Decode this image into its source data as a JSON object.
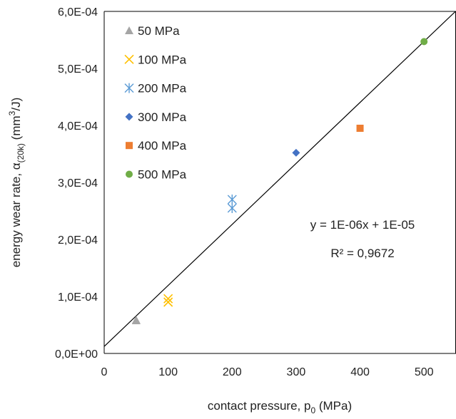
{
  "chart_data": {
    "type": "scatter",
    "title": "",
    "xlabel": "contact pressure,  p",
    "xlabel_sub": "0",
    "xlabel_unit": " (MPa)",
    "ylabel": "energy wear rate, α",
    "ylabel_sub": "(20k)",
    "ylabel_unit": " (mm",
    "ylabel_sup": "3",
    "ylabel_end": "/J)",
    "xlim": [
      0,
      550
    ],
    "ylim": [
      0,
      0.0006
    ],
    "xticks": [
      0,
      100,
      200,
      300,
      400,
      500
    ],
    "xtick_labels": [
      "0",
      "100",
      "200",
      "300",
      "400",
      "500"
    ],
    "yticks": [
      0,
      0.0001,
      0.0002,
      0.0003,
      0.0004,
      0.0005,
      0.0006
    ],
    "ytick_labels": [
      "0,0E+00",
      "1,0E-04",
      "2,0E-04",
      "3,0E-04",
      "4,0E-04",
      "5,0E-04",
      "6,0E-04"
    ],
    "grid": false,
    "legend_position": "top-left",
    "series": [
      {
        "name": "50 MPa",
        "marker": "triangle",
        "color": "#a5a5a5",
        "points": [
          [
            50,
            5.85e-05
          ],
          [
            50,
            5.75e-05
          ]
        ]
      },
      {
        "name": "100 MPa",
        "marker": "x",
        "color": "#ffc000",
        "points": [
          [
            100,
            9.6e-05
          ],
          [
            100,
            9e-05
          ]
        ]
      },
      {
        "name": "200 MPa",
        "marker": "asterisk",
        "color": "#5b9bd5",
        "points": [
          [
            200,
            0.00027
          ],
          [
            200,
            0.000255
          ]
        ]
      },
      {
        "name": "300 MPa",
        "marker": "diamond",
        "color": "#4472c4",
        "points": [
          [
            300,
            0.000352
          ]
        ]
      },
      {
        "name": "400 MPa",
        "marker": "square",
        "color": "#ed7d31",
        "points": [
          [
            400,
            0.000395
          ]
        ]
      },
      {
        "name": "500 MPa",
        "marker": "circle",
        "color": "#70ad47",
        "points": [
          [
            500,
            0.000547
          ]
        ]
      }
    ],
    "trendline": {
      "type": "linear",
      "slope": 1.07e-06,
      "intercept": 1.23e-05,
      "color": "#000000"
    },
    "annotations": [
      "y = 1E-06x + 1E-05",
      "R² = 0,9672"
    ]
  }
}
